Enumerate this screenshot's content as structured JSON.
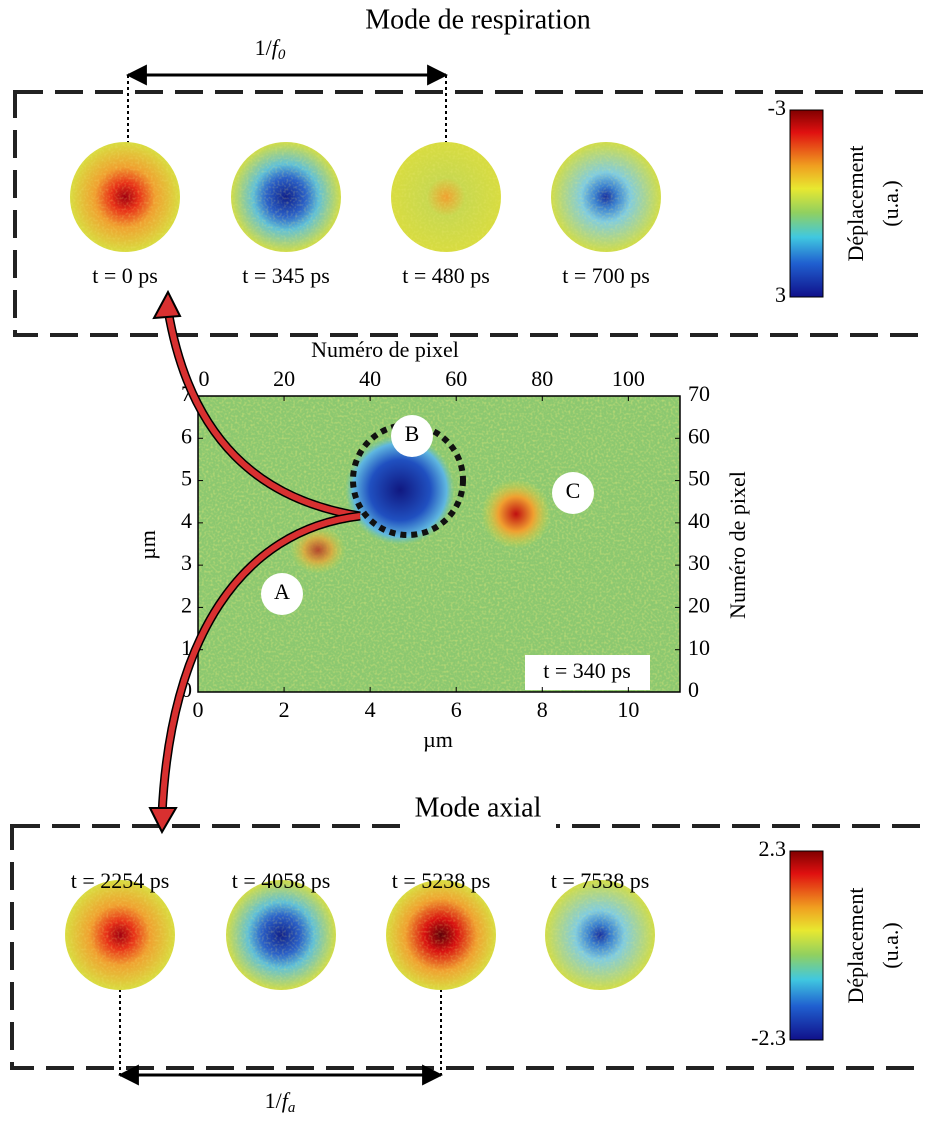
{
  "top_panel": {
    "title": "Mode de respiration",
    "period": {
      "prefix": "1/",
      "symbol": "f",
      "index": "0"
    },
    "frames": [
      "t = 0 ps",
      "t = 345 ps",
      "t = 480 ps",
      "t = 700 ps"
    ],
    "colorbar": {
      "label": "Déplacement",
      "unit": "(u.a.)",
      "ticks": [
        -3,
        3
      ]
    }
  },
  "center_map": {
    "top_axis_label": "Numéro de pixel",
    "top_ticks": [
      0,
      20,
      40,
      60,
      80,
      100
    ],
    "top_lim": [
      0,
      112
    ],
    "x_label": "µm",
    "xticks": [
      0,
      2,
      4,
      6,
      8,
      10
    ],
    "xlim": [
      0,
      11.2
    ],
    "y_label": "µm",
    "yticks": [
      0,
      1,
      2,
      3,
      4,
      5,
      6,
      7
    ],
    "ylim": [
      0,
      7
    ],
    "right_axis_label": "Numéro de pixel",
    "right_ticks": [
      0,
      10,
      20,
      30,
      40,
      50,
      60,
      70
    ],
    "right_lim": [
      0,
      70
    ],
    "time": "t = 340 ps",
    "markers": [
      "A",
      "B",
      "C"
    ]
  },
  "bottom_panel": {
    "title": "Mode axial",
    "period": {
      "prefix": "1/",
      "symbol": "f",
      "index": "a"
    },
    "frames": [
      "t = 2254 ps",
      "t = 4058 ps",
      "t = 5238 ps",
      "t = 7538 ps"
    ],
    "colorbar": {
      "label": "Déplacement",
      "unit": "(u.a.)",
      "ticks": [
        2.3,
        -2.3
      ]
    }
  }
}
